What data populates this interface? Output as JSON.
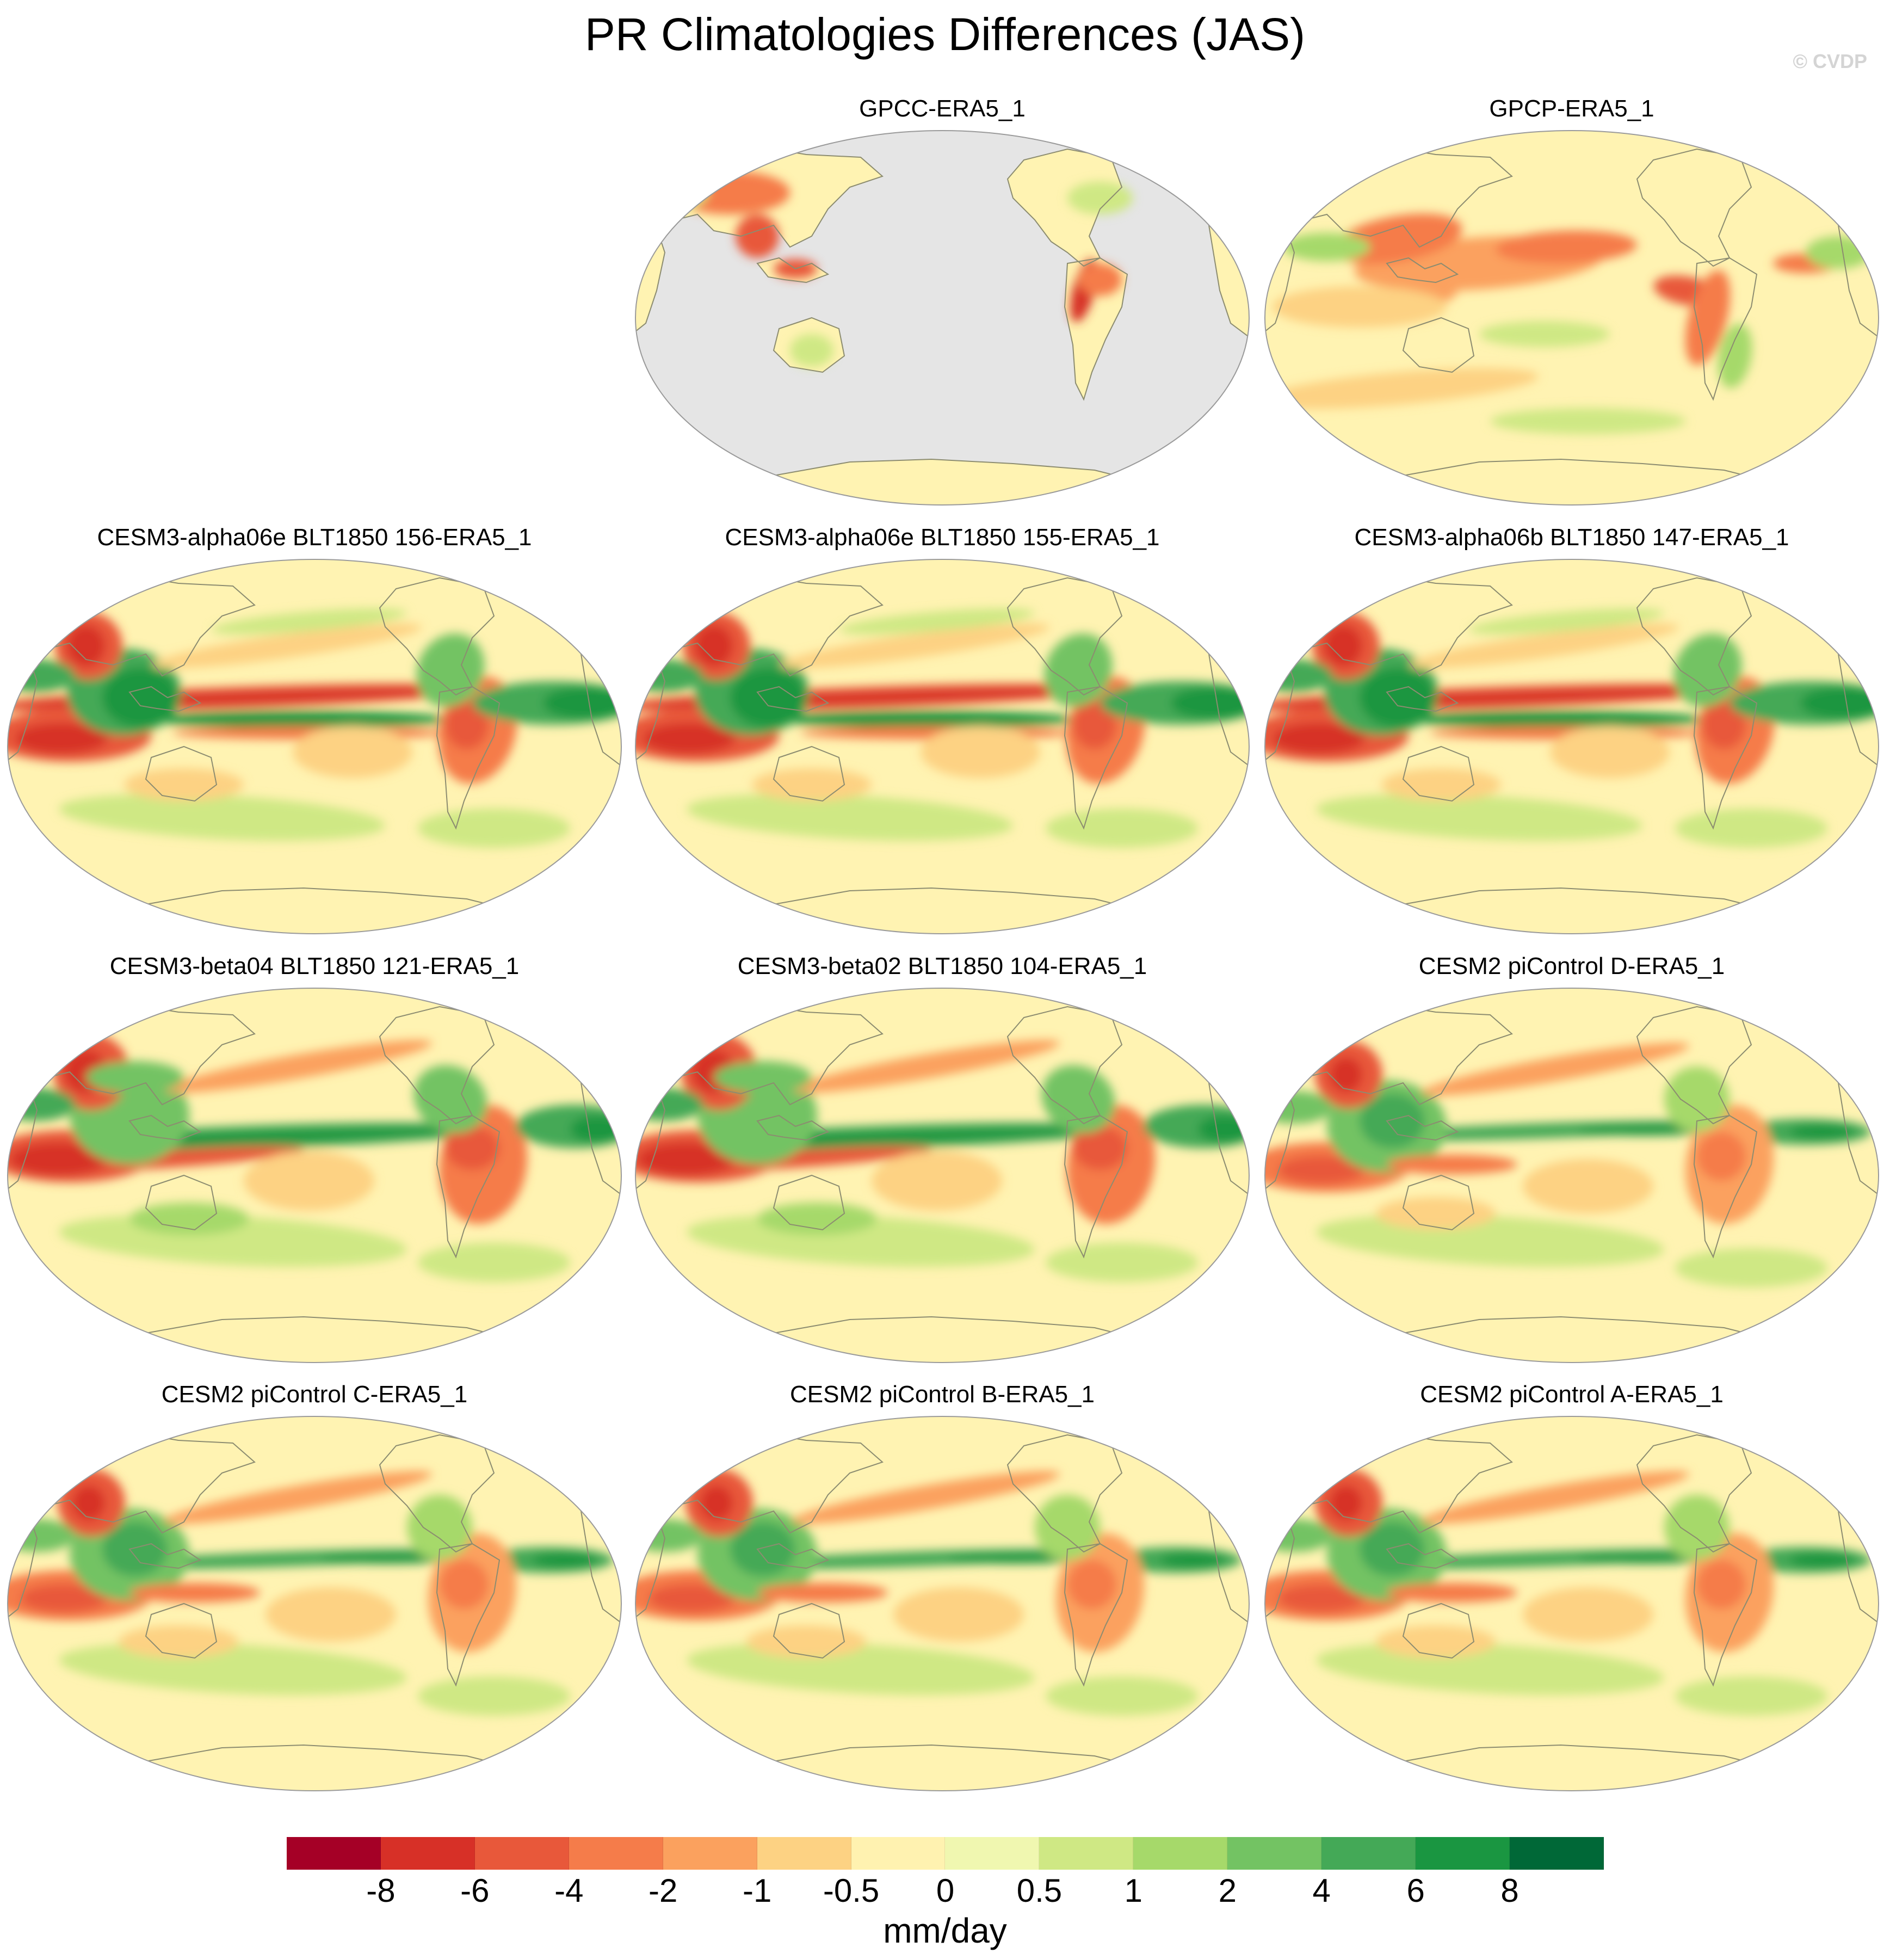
{
  "title": "PR Climatologies Differences (JAS)",
  "credit": "© CVDP",
  "panels": [
    {
      "label": "GPCC-ERA5_1",
      "variant": "obs_land"
    },
    {
      "label": "GPCP-ERA5_1",
      "variant": "obs_global"
    },
    {
      "label": "CESM3-alpha06e BLT1850 156-ERA5_1",
      "variant": "model_cesm3"
    },
    {
      "label": "CESM3-alpha06e BLT1850 155-ERA5_1",
      "variant": "model_cesm3"
    },
    {
      "label": "CESM3-alpha06b BLT1850 147-ERA5_1",
      "variant": "model_cesm3"
    },
    {
      "label": "CESM3-beta04 BLT1850 121-ERA5_1",
      "variant": "model_cesm3b"
    },
    {
      "label": "CESM3-beta02 BLT1850 104-ERA5_1",
      "variant": "model_cesm3b"
    },
    {
      "label": "CESM2 piControl D-ERA5_1",
      "variant": "model_cesm2"
    },
    {
      "label": "CESM2 piControl C-ERA5_1",
      "variant": "model_cesm2"
    },
    {
      "label": "CESM2 piControl B-ERA5_1",
      "variant": "model_cesm2"
    },
    {
      "label": "CESM2 piControl A-ERA5_1",
      "variant": "model_cesm2"
    }
  ],
  "colorbar": {
    "units": "mm/day",
    "labels": [
      "-8",
      "-6",
      "-4",
      "-2",
      "-1",
      "-0.5",
      "0",
      "0.5",
      "1",
      "2",
      "4",
      "6",
      "8"
    ],
    "colors": [
      "#a50026",
      "#d73027",
      "#e8583a",
      "#f57c4a",
      "#fba15e",
      "#fdd283",
      "#fff2b0",
      "#f0f7b0",
      "#cfe884",
      "#a6d96a",
      "#73c363",
      "#44a957",
      "#1a9641",
      "#006837"
    ]
  },
  "map_style": {
    "background": "#fff3b2",
    "ocean_mask": "#e5e5e5",
    "coastline": "#8c8c70"
  }
}
